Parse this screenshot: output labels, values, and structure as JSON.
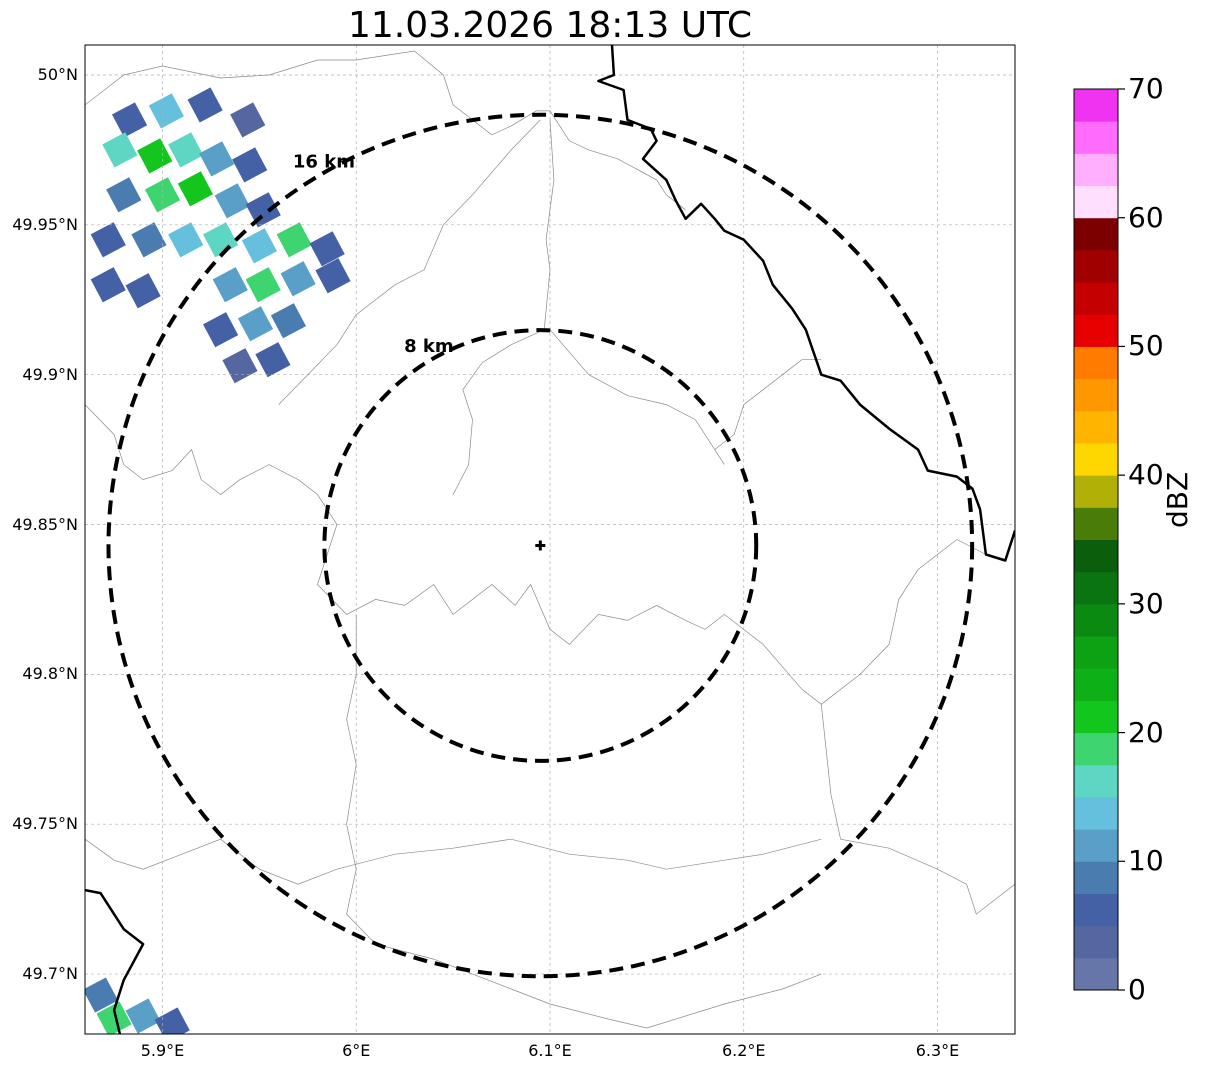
{
  "title": "11.03.2026 18:13 UTC",
  "map": {
    "lon_range": [
      5.86,
      6.34
    ],
    "lat_range": [
      49.68,
      50.01
    ],
    "lon_ticks": [
      "5.9°E",
      "6°E",
      "6.1°E",
      "6.2°E",
      "6.3°E"
    ],
    "lat_ticks": [
      "50°N",
      "49.95°N",
      "49.9°N",
      "49.85°N",
      "49.8°N",
      "49.75°N",
      "49.7°N"
    ],
    "gridlines": true,
    "radar_site": {
      "lon": 6.095,
      "lat": 49.843,
      "marker": "plus"
    },
    "range_rings": [
      {
        "label": "8 km",
        "radius_km": 8
      },
      {
        "label": "16 km",
        "radius_km": 16
      }
    ]
  },
  "colorbar": {
    "label": "dBZ",
    "min": 0,
    "max": 70,
    "step": 2.5,
    "tick_labels": [
      "0",
      "10",
      "20",
      "30",
      "40",
      "50",
      "60",
      "70"
    ],
    "colors": [
      "#6676a8",
      "#5567a0",
      "#4461a5",
      "#4a7cb0",
      "#5a9fc8",
      "#64c0dc",
      "#5ed6c4",
      "#3ed570",
      "#12c61e",
      "#0eb018",
      "#0ca214",
      "#0b8a12",
      "#0a7410",
      "#0a5e0c",
      "#4a7c08",
      "#b0b006",
      "#ffd700",
      "#ffb500",
      "#ff9800",
      "#ff7c00",
      "#e60000",
      "#c40000",
      "#a10000",
      "#7d0000",
      "#ffdefe",
      "#ffaffe",
      "#ff6cfd",
      "#f033f0"
    ]
  },
  "reflectivity_cells": [
    {
      "lon": 5.883,
      "lat": 49.985,
      "dbz": 6
    },
    {
      "lon": 5.902,
      "lat": 49.988,
      "dbz": 14
    },
    {
      "lon": 5.922,
      "lat": 49.99,
      "dbz": 6
    },
    {
      "lon": 5.944,
      "lat": 49.985,
      "dbz": 4
    },
    {
      "lon": 5.878,
      "lat": 49.975,
      "dbz": 16
    },
    {
      "lon": 5.896,
      "lat": 49.973,
      "dbz": 21
    },
    {
      "lon": 5.912,
      "lat": 49.975,
      "dbz": 17
    },
    {
      "lon": 5.928,
      "lat": 49.972,
      "dbz": 12
    },
    {
      "lon": 5.945,
      "lat": 49.97,
      "dbz": 5
    },
    {
      "lon": 5.88,
      "lat": 49.96,
      "dbz": 8
    },
    {
      "lon": 5.9,
      "lat": 49.96,
      "dbz": 19
    },
    {
      "lon": 5.917,
      "lat": 49.962,
      "dbz": 22
    },
    {
      "lon": 5.936,
      "lat": 49.958,
      "dbz": 11
    },
    {
      "lon": 5.952,
      "lat": 49.955,
      "dbz": 5
    },
    {
      "lon": 5.872,
      "lat": 49.945,
      "dbz": 6
    },
    {
      "lon": 5.893,
      "lat": 49.945,
      "dbz": 9
    },
    {
      "lon": 5.912,
      "lat": 49.945,
      "dbz": 13
    },
    {
      "lon": 5.93,
      "lat": 49.945,
      "dbz": 17
    },
    {
      "lon": 5.95,
      "lat": 49.943,
      "dbz": 14
    },
    {
      "lon": 5.968,
      "lat": 49.945,
      "dbz": 18
    },
    {
      "lon": 5.985,
      "lat": 49.942,
      "dbz": 6
    },
    {
      "lon": 5.872,
      "lat": 49.93,
      "dbz": 7
    },
    {
      "lon": 5.89,
      "lat": 49.928,
      "dbz": 5
    },
    {
      "lon": 5.935,
      "lat": 49.93,
      "dbz": 10
    },
    {
      "lon": 5.952,
      "lat": 49.93,
      "dbz": 18
    },
    {
      "lon": 5.97,
      "lat": 49.932,
      "dbz": 12
    },
    {
      "lon": 5.988,
      "lat": 49.933,
      "dbz": 5
    },
    {
      "lon": 5.93,
      "lat": 49.915,
      "dbz": 5
    },
    {
      "lon": 5.948,
      "lat": 49.917,
      "dbz": 11
    },
    {
      "lon": 5.965,
      "lat": 49.918,
      "dbz": 8
    },
    {
      "lon": 5.94,
      "lat": 49.903,
      "dbz": 4
    },
    {
      "lon": 5.957,
      "lat": 49.905,
      "dbz": 6
    },
    {
      "lon": 5.868,
      "lat": 49.693,
      "dbz": 8
    },
    {
      "lon": 5.875,
      "lat": 49.685,
      "dbz": 18
    },
    {
      "lon": 5.89,
      "lat": 49.686,
      "dbz": 12
    },
    {
      "lon": 5.905,
      "lat": 49.683,
      "dbz": 6
    }
  ],
  "features": {
    "borders": [
      [
        [
          6.132,
          50.01
        ],
        [
          6.133,
          50.0
        ],
        [
          6.125,
          49.998
        ],
        [
          6.138,
          49.995
        ],
        [
          6.14,
          49.985
        ],
        [
          6.152,
          49.982
        ],
        [
          6.155,
          49.978
        ],
        [
          6.148,
          49.972
        ],
        [
          6.16,
          49.965
        ],
        [
          6.165,
          49.958
        ],
        [
          6.17,
          49.952
        ],
        [
          6.178,
          49.957
        ],
        [
          6.185,
          49.952
        ],
        [
          6.19,
          49.948
        ],
        [
          6.2,
          49.945
        ],
        [
          6.21,
          49.938
        ],
        [
          6.215,
          49.93
        ],
        [
          6.225,
          49.922
        ],
        [
          6.232,
          49.915
        ],
        [
          6.24,
          49.9
        ],
        [
          6.25,
          49.898
        ],
        [
          6.26,
          49.89
        ],
        [
          6.275,
          49.882
        ],
        [
          6.29,
          49.875
        ],
        [
          6.295,
          49.868
        ],
        [
          6.31,
          49.866
        ],
        [
          6.318,
          49.862
        ],
        [
          6.322,
          49.855
        ],
        [
          6.325,
          49.84
        ],
        [
          6.335,
          49.838
        ],
        [
          6.34,
          49.848
        ]
      ],
      [
        [
          5.86,
          49.728
        ],
        [
          5.868,
          49.727
        ],
        [
          5.88,
          49.715
        ],
        [
          5.89,
          49.71
        ],
        [
          5.88,
          49.698
        ],
        [
          5.875,
          49.688
        ],
        [
          5.878,
          49.68
        ]
      ]
    ],
    "admin_lines": [
      [
        [
          5.86,
          49.99
        ],
        [
          5.87,
          49.995
        ],
        [
          5.88,
          50.0
        ],
        [
          5.9,
          50.003
        ],
        [
          5.93,
          49.999
        ],
        [
          5.955,
          50.0
        ],
        [
          5.98,
          50.005
        ],
        [
          6.0,
          50.005
        ],
        [
          6.03,
          50.008
        ],
        [
          6.045,
          50.0
        ],
        [
          6.05,
          49.99
        ],
        [
          6.06,
          49.985
        ],
        [
          6.07,
          49.98
        ],
        [
          6.08,
          49.983
        ],
        [
          6.093,
          49.988
        ],
        [
          6.1,
          49.988
        ],
        [
          6.11,
          49.978
        ],
        [
          6.12,
          49.975
        ],
        [
          6.135,
          49.972
        ],
        [
          6.155,
          49.965
        ],
        [
          6.16,
          49.96
        ],
        [
          6.17,
          49.955
        ]
      ],
      [
        [
          6.1,
          49.985
        ],
        [
          6.102,
          49.965
        ],
        [
          6.098,
          49.945
        ],
        [
          6.1,
          49.935
        ],
        [
          6.097,
          49.915
        ],
        [
          6.08,
          49.91
        ],
        [
          6.065,
          49.904
        ],
        [
          6.055,
          49.895
        ],
        [
          6.06,
          49.885
        ],
        [
          6.058,
          49.87
        ],
        [
          6.05,
          49.86
        ]
      ],
      [
        [
          6.1,
          49.915
        ],
        [
          6.12,
          49.9
        ],
        [
          6.14,
          49.893
        ],
        [
          6.16,
          49.89
        ],
        [
          6.175,
          49.885
        ],
        [
          6.19,
          49.87
        ]
      ],
      [
        [
          6.185,
          49.875
        ],
        [
          6.195,
          49.88
        ],
        [
          6.2,
          49.89
        ],
        [
          6.21,
          49.895
        ],
        [
          6.22,
          49.9
        ],
        [
          6.23,
          49.905
        ],
        [
          6.24,
          49.905
        ]
      ],
      [
        [
          5.86,
          49.89
        ],
        [
          5.875,
          49.88
        ],
        [
          5.88,
          49.87
        ],
        [
          5.89,
          49.865
        ],
        [
          5.905,
          49.868
        ],
        [
          5.915,
          49.875
        ],
        [
          5.92,
          49.865
        ],
        [
          5.93,
          49.86
        ],
        [
          5.94,
          49.865
        ],
        [
          5.955,
          49.87
        ],
        [
          5.97,
          49.865
        ],
        [
          5.98,
          49.86
        ],
        [
          5.99,
          49.85
        ],
        [
          5.985,
          49.84
        ],
        [
          5.98,
          49.83
        ],
        [
          5.995,
          49.82
        ],
        [
          6.01,
          49.825
        ],
        [
          6.025,
          49.823
        ],
        [
          6.04,
          49.83
        ],
        [
          6.05,
          49.82
        ],
        [
          6.07,
          49.83
        ],
        [
          6.082,
          49.823
        ],
        [
          6.09,
          49.83
        ],
        [
          6.1,
          49.815
        ],
        [
          6.11,
          49.81
        ],
        [
          6.125,
          49.82
        ],
        [
          6.14,
          49.818
        ],
        [
          6.155,
          49.823
        ],
        [
          6.17,
          49.818
        ],
        [
          6.18,
          49.815
        ],
        [
          6.19,
          49.82
        ],
        [
          6.21,
          49.81
        ],
        [
          6.23,
          49.795
        ],
        [
          6.24,
          49.79
        ]
      ],
      [
        [
          6.24,
          49.79
        ],
        [
          6.245,
          49.76
        ],
        [
          6.25,
          49.745
        ],
        [
          6.275,
          49.742
        ],
        [
          6.3,
          49.735
        ],
        [
          6.315,
          49.73
        ],
        [
          6.32,
          49.72
        ],
        [
          6.33,
          49.725
        ],
        [
          6.34,
          49.73
        ]
      ],
      [
        [
          5.96,
          49.89
        ],
        [
          5.975,
          49.9
        ],
        [
          5.99,
          49.91
        ],
        [
          6.0,
          49.92
        ],
        [
          6.02,
          49.93
        ],
        [
          6.035,
          49.935
        ],
        [
          6.045,
          49.95
        ],
        [
          6.06,
          49.96
        ],
        [
          6.08,
          49.975
        ],
        [
          6.095,
          49.985
        ]
      ],
      [
        [
          6.0,
          49.82
        ],
        [
          6.0,
          49.8
        ],
        [
          5.995,
          49.785
        ],
        [
          6.0,
          49.77
        ],
        [
          5.995,
          49.75
        ],
        [
          6.0,
          49.735
        ],
        [
          5.995,
          49.72
        ],
        [
          6.01,
          49.71
        ],
        [
          6.04,
          49.705
        ],
        [
          6.06,
          49.7
        ],
        [
          6.08,
          49.695
        ],
        [
          6.1,
          49.69
        ],
        [
          6.13,
          49.685
        ]
      ],
      [
        [
          5.86,
          49.745
        ],
        [
          5.875,
          49.738
        ],
        [
          5.89,
          49.735
        ],
        [
          5.91,
          49.74
        ],
        [
          5.93,
          49.745
        ],
        [
          5.95,
          49.735
        ],
        [
          5.97,
          49.73
        ],
        [
          5.99,
          49.735
        ],
        [
          6.02,
          49.74
        ],
        [
          6.05,
          49.742
        ],
        [
          6.08,
          49.745
        ],
        [
          6.11,
          49.74
        ],
        [
          6.14,
          49.738
        ],
        [
          6.16,
          49.735
        ],
        [
          6.19,
          49.738
        ],
        [
          6.21,
          49.74
        ],
        [
          6.24,
          49.745
        ]
      ],
      [
        [
          6.13,
          49.685
        ],
        [
          6.15,
          49.682
        ],
        [
          6.19,
          49.69
        ],
        [
          6.22,
          49.695
        ],
        [
          6.24,
          49.7
        ]
      ],
      [
        [
          6.24,
          49.79
        ],
        [
          6.26,
          49.8
        ],
        [
          6.275,
          49.81
        ],
        [
          6.28,
          49.825
        ],
        [
          6.29,
          49.835
        ],
        [
          6.31,
          49.845
        ],
        [
          6.325,
          49.84
        ]
      ]
    ]
  }
}
